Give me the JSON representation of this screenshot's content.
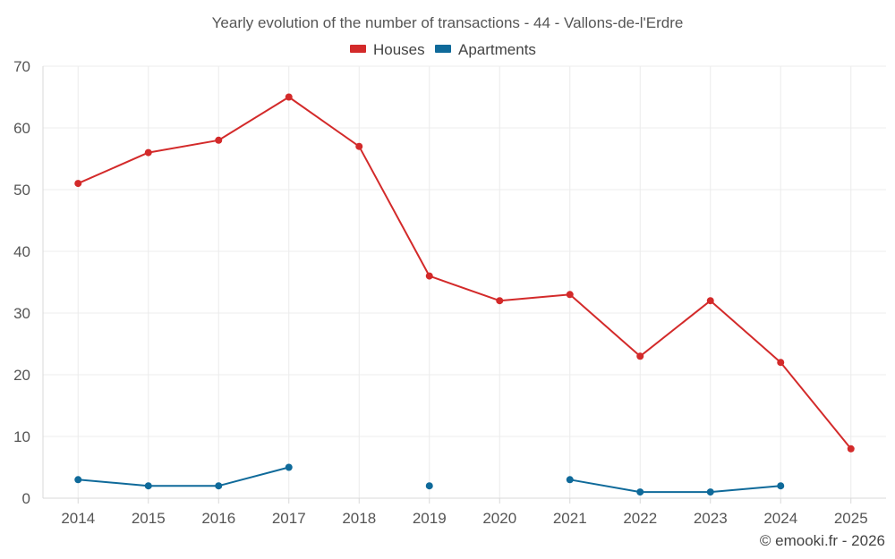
{
  "chart_data": {
    "type": "line",
    "title": "Yearly evolution of the number of transactions - 44 - Vallons-de-l'Erdre",
    "categories": [
      "2014",
      "2015",
      "2016",
      "2017",
      "2018",
      "2019",
      "2020",
      "2021",
      "2022",
      "2023",
      "2024",
      "2025"
    ],
    "ylim": [
      0,
      70
    ],
    "yticks": [
      0,
      10,
      20,
      30,
      40,
      50,
      60,
      70
    ],
    "grid": true,
    "legend_position": "top-center",
    "series": [
      {
        "name": "Houses",
        "color": "#d32a2a",
        "values": [
          51,
          56,
          58,
          65,
          57,
          36,
          32,
          33,
          23,
          32,
          22,
          8
        ]
      },
      {
        "name": "Apartments",
        "color": "#0f6a9a",
        "values": [
          3,
          2,
          2,
          5,
          null,
          2,
          null,
          3,
          1,
          1,
          2,
          null
        ]
      }
    ]
  },
  "credit": "© emooki.fr - 2026"
}
